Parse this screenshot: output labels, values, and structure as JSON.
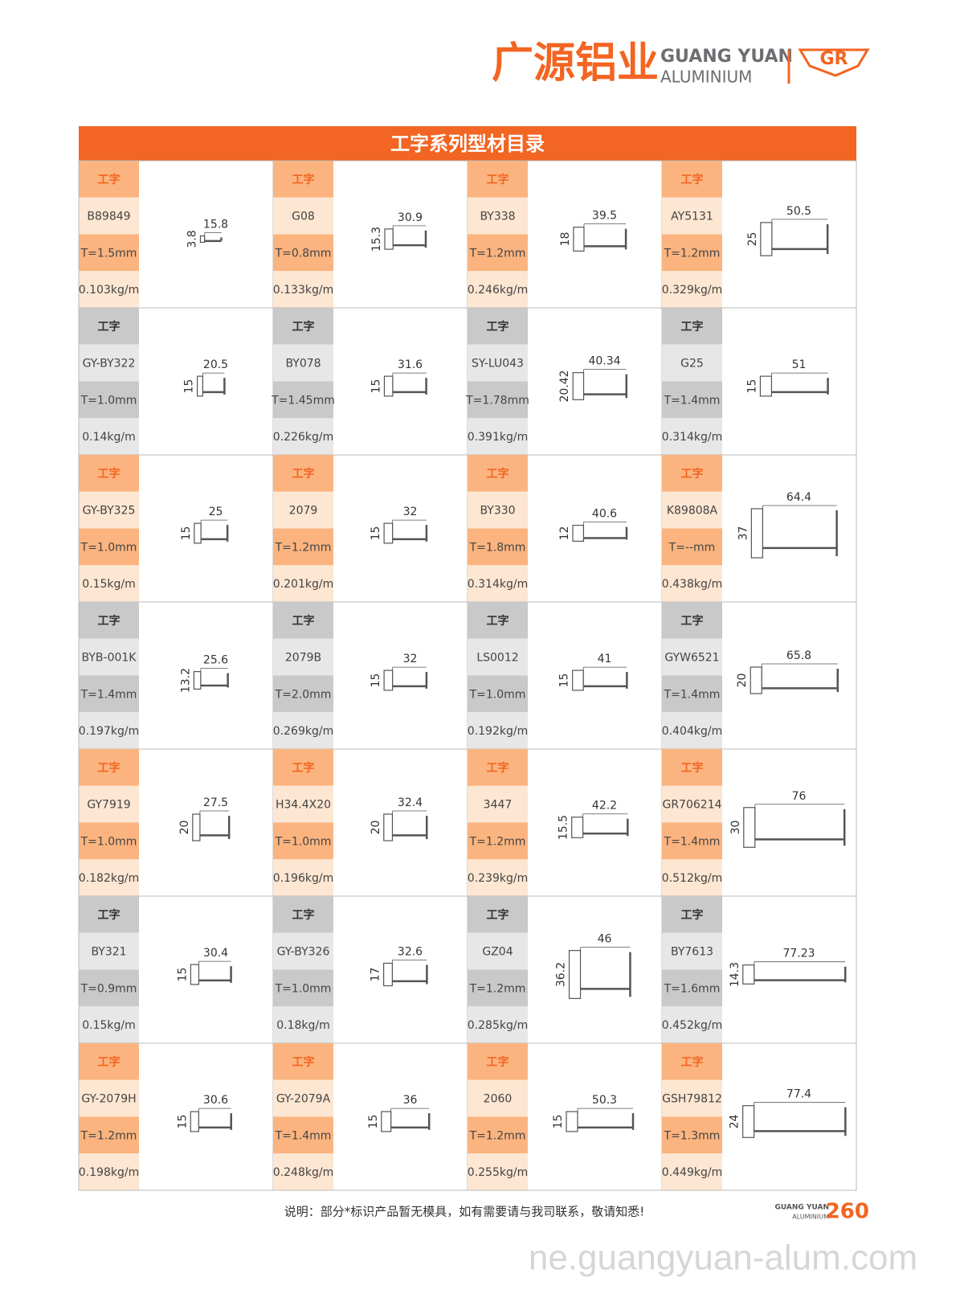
{
  "header": {
    "brand_cn": "广源铝业",
    "brand_en": "GUANG YUAN",
    "brand_sub": "ALUMINIUM"
  },
  "catalog": {
    "title": "工字系列型材目录",
    "rows": [
      [
        {
          "tag": "工字",
          "code": "B89849",
          "thickness": "T=1.5mm",
          "weight": "0.103kg/m",
          "width": "15.8",
          "height": "3.8"
        },
        {
          "tag": "工字",
          "code": "G08",
          "thickness": "T=0.8mm",
          "weight": "0.133kg/m",
          "width": "30.9",
          "height": "15.3"
        },
        {
          "tag": "工字",
          "code": "BY338",
          "thickness": "T=1.2mm",
          "weight": "0.246kg/m",
          "width": "39.5",
          "height": "18"
        },
        {
          "tag": "工字",
          "code": "AY5131",
          "thickness": "T=1.2mm",
          "weight": "0.329kg/m",
          "width": "50.5",
          "height": "25"
        }
      ],
      [
        {
          "tag": "工字",
          "code": "GY-BY322",
          "thickness": "T=1.0mm",
          "weight": "0.14kg/m",
          "width": "20.5",
          "height": "15"
        },
        {
          "tag": "工字",
          "code": "BY078",
          "thickness": "T=1.45mm",
          "weight": "0.226kg/m",
          "width": "31.6",
          "height": "15"
        },
        {
          "tag": "工字",
          "code": "SY-LU043",
          "thickness": "T=1.78mm",
          "weight": "0.391kg/m",
          "width": "40.34",
          "height": "20.42"
        },
        {
          "tag": "工字",
          "code": "G25",
          "thickness": "T=1.4mm",
          "weight": "0.314kg/m",
          "width": "51",
          "height": "15"
        }
      ],
      [
        {
          "tag": "工字",
          "code": "GY-BY325",
          "thickness": "T=1.0mm",
          "weight": "0.15kg/m",
          "width": "25",
          "height": "15"
        },
        {
          "tag": "工字",
          "code": "2079",
          "thickness": "T=1.2mm",
          "weight": "0.201kg/m",
          "width": "32",
          "height": "15"
        },
        {
          "tag": "工字",
          "code": "BY330",
          "thickness": "T=1.8mm",
          "weight": "0.314kg/m",
          "width": "40.6",
          "height": "12"
        },
        {
          "tag": "工字",
          "code": "K89808A",
          "thickness": "T=--mm",
          "weight": "0.438kg/m",
          "width": "64.4",
          "height": "37"
        }
      ],
      [
        {
          "tag": "工字",
          "code": "BYB-001K",
          "thickness": "T=1.4mm",
          "weight": "0.197kg/m",
          "width": "25.6",
          "height": "13.2"
        },
        {
          "tag": "工字",
          "code": "2079B",
          "thickness": "T=2.0mm",
          "weight": "0.269kg/m",
          "width": "32",
          "height": "15"
        },
        {
          "tag": "工字",
          "code": "LS0012",
          "thickness": "T=1.0mm",
          "weight": "0.192kg/m",
          "width": "41",
          "height": "15"
        },
        {
          "tag": "工字",
          "code": "GYW6521",
          "thickness": "T=1.4mm",
          "weight": "0.404kg/m",
          "width": "65.8",
          "height": "20"
        }
      ],
      [
        {
          "tag": "工字",
          "code": "GY7919",
          "thickness": "T=1.0mm",
          "weight": "0.182kg/m",
          "width": "27.5",
          "height": "20"
        },
        {
          "tag": "工字",
          "code": "H34.4X20",
          "thickness": "T=1.0mm",
          "weight": "0.196kg/m",
          "width": "32.4",
          "height": "20"
        },
        {
          "tag": "工字",
          "code": "3447",
          "thickness": "T=1.2mm",
          "weight": "0.239kg/m",
          "width": "42.2",
          "height": "15.5"
        },
        {
          "tag": "工字",
          "code": "GR706214",
          "thickness": "T=1.4mm",
          "weight": "0.512kg/m",
          "width": "76",
          "height": "30"
        }
      ],
      [
        {
          "tag": "工字",
          "code": "BY321",
          "thickness": "T=0.9mm",
          "weight": "0.15kg/m",
          "width": "30.4",
          "height": "15"
        },
        {
          "tag": "工字",
          "code": "GY-BY326",
          "thickness": "T=1.0mm",
          "weight": "0.18kg/m",
          "width": "32.6",
          "height": "17"
        },
        {
          "tag": "工字",
          "code": "GZ04",
          "thickness": "T=1.2mm",
          "weight": "0.285kg/m",
          "width": "46",
          "height": "36.2"
        },
        {
          "tag": "工字",
          "code": "BY7613",
          "thickness": "T=1.6mm",
          "weight": "0.452kg/m",
          "width": "77.23",
          "height": "14.3"
        }
      ],
      [
        {
          "tag": "工字",
          "code": "GY-2079H",
          "thickness": "T=1.2mm",
          "weight": "0.198kg/m",
          "width": "30.6",
          "height": "15"
        },
        {
          "tag": "工字",
          "code": "GY-2079A",
          "thickness": "T=1.4mm",
          "weight": "0.248kg/m",
          "width": "36",
          "height": "15"
        },
        {
          "tag": "工字",
          "code": "2060",
          "thickness": "T=1.2mm",
          "weight": "0.255kg/m",
          "width": "50.3",
          "height": "15"
        },
        {
          "tag": "工字",
          "code": "GSH79812",
          "thickness": "T=1.3mm",
          "weight": "0.449kg/m",
          "width": "77.4",
          "height": "24"
        }
      ]
    ]
  },
  "footer": {
    "note": "说明：部分*标识产品暂无模具，如有需要请与我司联系，敬请知悉!",
    "brand_en": "GUANG YUAN",
    "brand_sub": "ALUMINIUM",
    "page": "260"
  },
  "watermark": "ne.guangyuan-alum.com"
}
